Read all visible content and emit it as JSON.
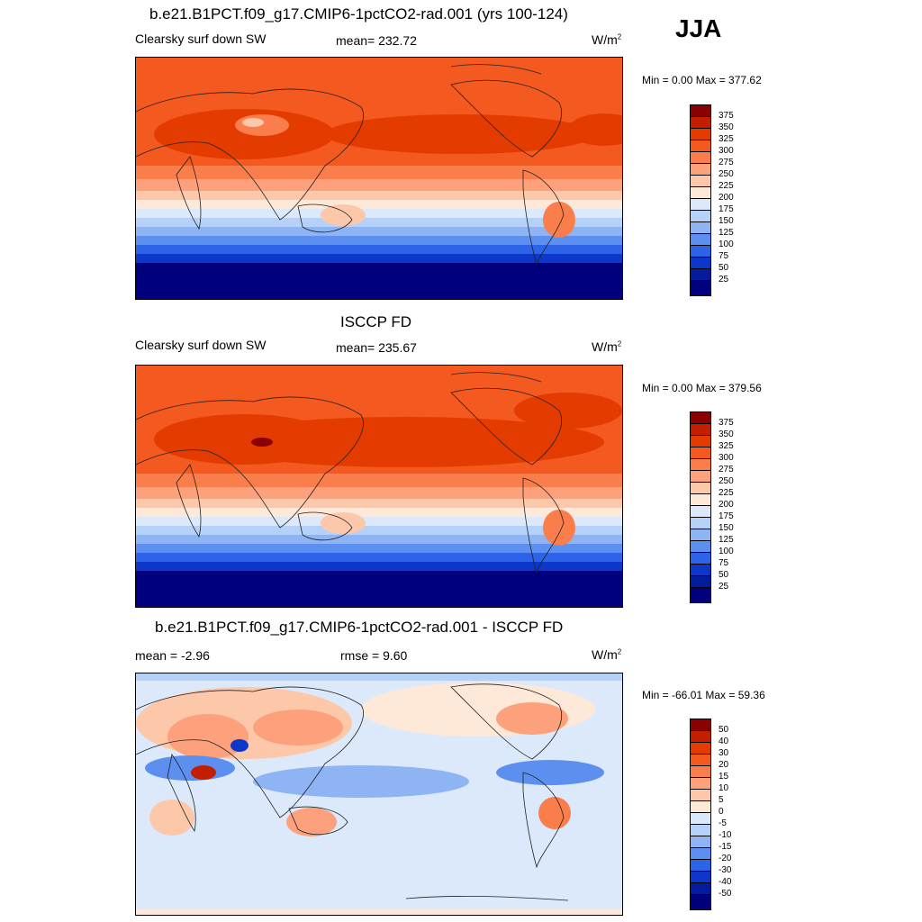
{
  "season": "JJA",
  "panels": [
    {
      "title": "b.e21.B1PCT.f09_g17.CMIP6-1pctCO2-rad.001 (yrs 100-124)",
      "left_label": "Clearsky surf down SW",
      "center_label": "mean= 232.72",
      "units": "W/m",
      "units_sup": "2",
      "minmax": "Min =   0.00 Max = 377.62",
      "colorbar": {
        "labels": [
          "375",
          "350",
          "325",
          "300",
          "275",
          "250",
          "225",
          "200",
          "175",
          "150",
          "125",
          "100",
          "75",
          "50",
          "25"
        ],
        "colors": [
          "#8b0000",
          "#c41e00",
          "#e43b00",
          "#f45a20",
          "#fa7d4c",
          "#fca17c",
          "#fdc7aa",
          "#fee8d8",
          "#dce9fb",
          "#b6d1f8",
          "#8eb4f3",
          "#5d8ff0",
          "#2d63e6",
          "#0d37c8",
          "#031b9c",
          "#00007f"
        ]
      }
    },
    {
      "title": "ISCCP FD",
      "left_label": "Clearsky surf down SW",
      "center_label": "mean= 235.67",
      "units": "W/m",
      "units_sup": "2",
      "minmax": "Min =   0.00 Max = 379.56",
      "colorbar": {
        "labels": [
          "375",
          "350",
          "325",
          "300",
          "275",
          "250",
          "225",
          "200",
          "175",
          "150",
          "125",
          "100",
          "75",
          "50",
          "25"
        ],
        "colors": [
          "#8b0000",
          "#c41e00",
          "#e43b00",
          "#f45a20",
          "#fa7d4c",
          "#fca17c",
          "#fdc7aa",
          "#fee8d8",
          "#dce9fb",
          "#b6d1f8",
          "#8eb4f3",
          "#5d8ff0",
          "#2d63e6",
          "#0d37c8",
          "#031b9c",
          "#00007f"
        ]
      }
    },
    {
      "title": "b.e21.B1PCT.f09_g17.CMIP6-1pctCO2-rad.001 - ISCCP FD",
      "left_label": "mean =  -2.96",
      "center_label": "rmse =   9.60",
      "units": "W/m",
      "units_sup": "2",
      "minmax": "Min = -66.01 Max =  59.36",
      "colorbar": {
        "labels": [
          "50",
          "40",
          "30",
          "20",
          "15",
          "10",
          "5",
          "0",
          "-5",
          "-10",
          "-15",
          "-20",
          "-30",
          "-40",
          "-50"
        ],
        "colors": [
          "#8b0000",
          "#c41e00",
          "#e43b00",
          "#f45a20",
          "#fa7d4c",
          "#fca17c",
          "#fdc7aa",
          "#fee8d8",
          "#dce9fb",
          "#b6d1f8",
          "#8eb4f3",
          "#5d8ff0",
          "#2d63e6",
          "#0d37c8",
          "#031b9c",
          "#00007f"
        ]
      }
    }
  ]
}
